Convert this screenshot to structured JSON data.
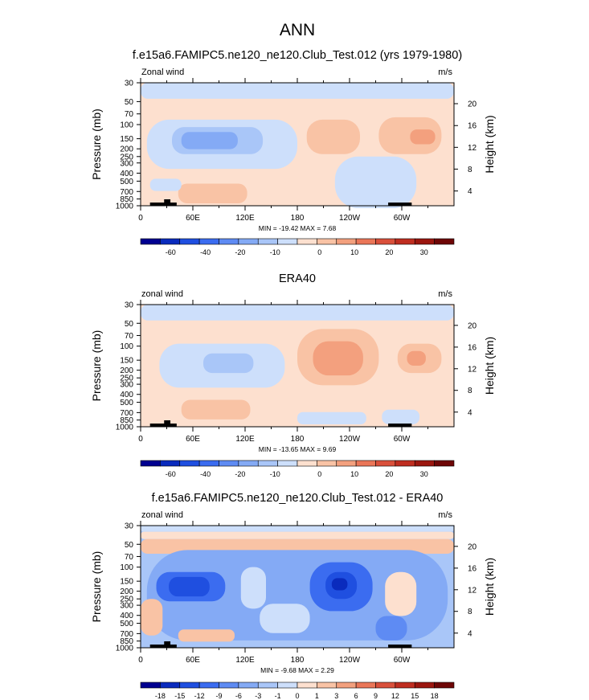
{
  "figure": {
    "title": "ANN"
  },
  "chart_data": [
    {
      "type": "heatmap",
      "title": "f.e15a6.FAMIPC5.ne120_ne120.Club_Test.012 (yrs 1979-1980)",
      "left_label": "Zonal wind",
      "right_label": "m/s",
      "ylabel": "Pressure (mb)",
      "y2label": "Height (km)",
      "pressure_ticks": [
        "30",
        "50",
        "70",
        "100",
        "150",
        "200",
        "250",
        "300",
        "400",
        "500",
        "700",
        "850",
        "1000"
      ],
      "height_ticks": [
        "20",
        "16",
        "12",
        "8",
        "4"
      ],
      "lon_ticks": [
        "0",
        "60E",
        "120E",
        "180",
        "120W",
        "60W"
      ],
      "stats": "MIN = -19.42   MAX =   7.68",
      "colorbar": {
        "ticks": [
          "-60",
          "-40",
          "-20",
          "-10",
          "0",
          "10",
          "20",
          "30"
        ],
        "colors": [
          "#000090",
          "#0a2bbd",
          "#1f4fe0",
          "#3b6cf0",
          "#5e8bf3",
          "#84aaf5",
          "#a9c6f8",
          "#cddffb",
          "#fde0cf",
          "#f9c3a5",
          "#f3a07e",
          "#ea7658",
          "#d9503b",
          "#bf2d20",
          "#9b160f",
          "#6e0606"
        ]
      },
      "background": "#fde0cf"
    },
    {
      "type": "heatmap",
      "title": "ERA40",
      "left_label": "zonal wind",
      "right_label": "m/s",
      "ylabel": "Pressure (mb)",
      "y2label": "Height (km)",
      "pressure_ticks": [
        "30",
        "50",
        "70",
        "100",
        "150",
        "200",
        "250",
        "300",
        "400",
        "500",
        "700",
        "850",
        "1000"
      ],
      "height_ticks": [
        "20",
        "16",
        "12",
        "8",
        "4"
      ],
      "lon_ticks": [
        "0",
        "60E",
        "120E",
        "180",
        "120W",
        "60W"
      ],
      "stats": "MIN = -13.65   MAX =   9.69",
      "colorbar": {
        "ticks": [
          "-60",
          "-40",
          "-20",
          "-10",
          "0",
          "10",
          "20",
          "30"
        ],
        "colors": [
          "#000090",
          "#0a2bbd",
          "#1f4fe0",
          "#3b6cf0",
          "#5e8bf3",
          "#84aaf5",
          "#a9c6f8",
          "#cddffb",
          "#fde0cf",
          "#f9c3a5",
          "#f3a07e",
          "#ea7658",
          "#d9503b",
          "#bf2d20",
          "#9b160f",
          "#6e0606"
        ]
      },
      "background": "#fde0cf"
    },
    {
      "type": "heatmap",
      "title": "f.e15a6.FAMIPC5.ne120_ne120.Club_Test.012 - ERA40",
      "left_label": "zonal wind",
      "right_label": "m/s",
      "ylabel": "Pressure (mb)",
      "y2label": "Height (km)",
      "pressure_ticks": [
        "30",
        "50",
        "70",
        "100",
        "150",
        "200",
        "250",
        "300",
        "400",
        "500",
        "700",
        "850",
        "1000"
      ],
      "height_ticks": [
        "20",
        "16",
        "12",
        "8",
        "4"
      ],
      "lon_ticks": [
        "0",
        "60E",
        "120E",
        "180",
        "120W",
        "60W"
      ],
      "stats": "MIN =  -9.68   MAX =   2.29",
      "colorbar": {
        "ticks": [
          "-18",
          "-15",
          "-12",
          "-9",
          "-6",
          "-3",
          "-1",
          "0",
          "1",
          "3",
          "6",
          "9",
          "12",
          "15",
          "18"
        ],
        "colors": [
          "#000090",
          "#0a2bbd",
          "#1f4fe0",
          "#3b6cf0",
          "#5e8bf3",
          "#84aaf5",
          "#a9c6f8",
          "#cddffb",
          "#fde0cf",
          "#f9c3a5",
          "#f3a07e",
          "#ea7658",
          "#d9503b",
          "#bf2d20",
          "#9b160f",
          "#6e0606"
        ]
      },
      "background": "#a9c6f8"
    }
  ]
}
